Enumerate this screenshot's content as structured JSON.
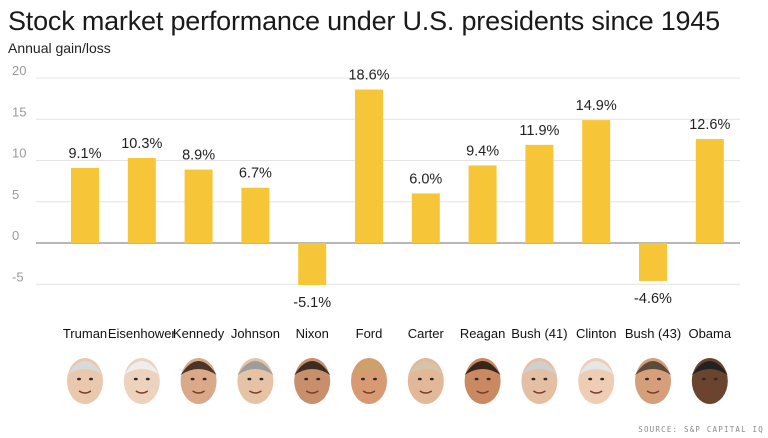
{
  "title": "Stock market performance under U.S. presidents since 1945",
  "source": "SOURCE: S&P CAPITAL IQ",
  "colors": {
    "bar": "#f7c638",
    "axis": "#888888",
    "grid": "#e4e4e4",
    "zero_line": "#8c8c8c"
  },
  "chart_data": {
    "type": "bar",
    "title": "Stock market performance under U.S. presidents since 1945",
    "ylabel": "Annual gain/loss",
    "xlabel": "",
    "ylim": [
      -5,
      20
    ],
    "yticks": [
      20,
      15,
      10,
      5,
      0,
      -5
    ],
    "grid": true,
    "categories": [
      "Truman",
      "Eisenhower",
      "Kennedy",
      "Johnson",
      "Nixon",
      "Ford",
      "Carter",
      "Reagan",
      "Bush (41)",
      "Clinton",
      "Bush (43)",
      "Obama"
    ],
    "values": [
      9.1,
      10.3,
      8.9,
      6.7,
      -5.1,
      18.6,
      6.0,
      9.4,
      11.9,
      14.9,
      -4.6,
      12.6
    ],
    "data_labels": [
      "9.1%",
      "10.3%",
      "8.9%",
      "6.7%",
      "-5.1%",
      "18.6%",
      "6.0%",
      "9.4%",
      "11.9%",
      "14.9%",
      "-4.6%",
      "12.6%"
    ],
    "portrait_icons": [
      "truman-portrait",
      "eisenhower-portrait",
      "kennedy-portrait",
      "johnson-portrait",
      "nixon-portrait",
      "ford-portrait",
      "carter-portrait",
      "reagan-portrait",
      "bush41-portrait",
      "clinton-portrait",
      "bush43-portrait",
      "obama-portrait"
    ]
  }
}
